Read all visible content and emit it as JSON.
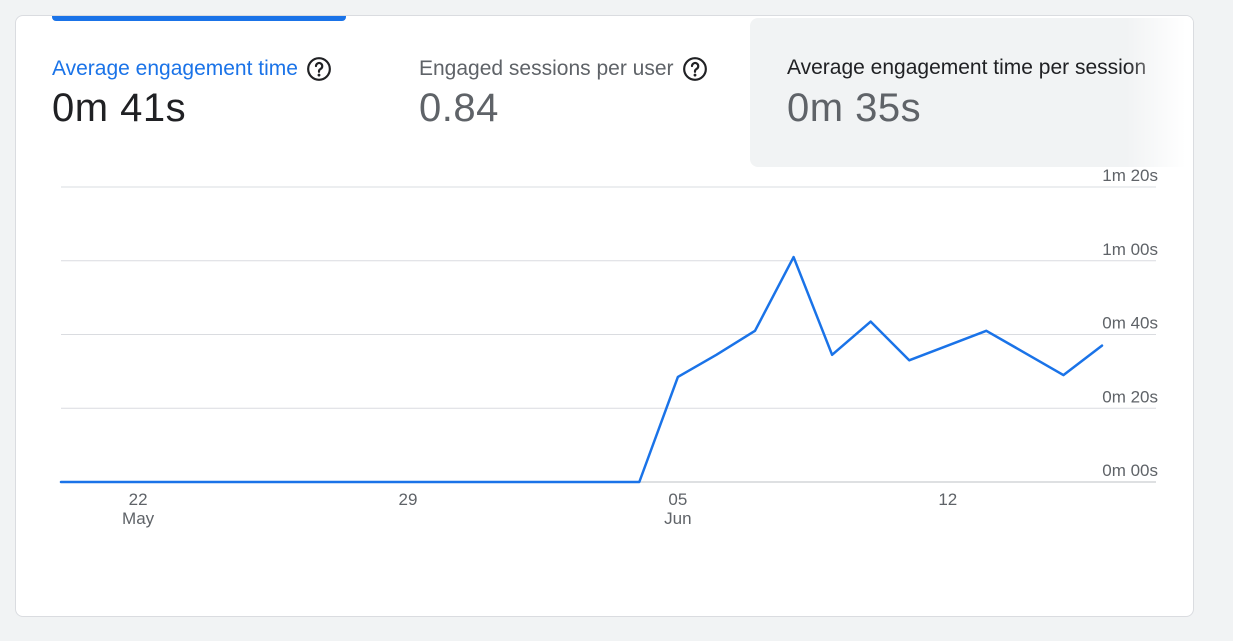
{
  "metrics": [
    {
      "label": "Average engagement time",
      "value": "0m 41s"
    },
    {
      "label": "Engaged sessions per user",
      "value": "0.84"
    },
    {
      "label": "Average engagement time per session",
      "value": "0m 35s"
    }
  ],
  "icons": {
    "help": "help-circle-icon"
  },
  "colors": {
    "accent": "#1a73e8",
    "grid": "#dadce0",
    "text": "#5f6368"
  },
  "chart_data": {
    "type": "line",
    "x_ticks": [
      {
        "date": "2024-05-22",
        "line1": "22",
        "line2": "May"
      },
      {
        "date": "2024-05-29",
        "line1": "29",
        "line2": ""
      },
      {
        "date": "2024-06-05",
        "line1": "05",
        "line2": "Jun"
      },
      {
        "date": "2024-06-12",
        "line1": "12",
        "line2": ""
      }
    ],
    "y_ticks": [
      {
        "value": 0,
        "label": "0m 00s"
      },
      {
        "value": 20,
        "label": "0m 20s"
      },
      {
        "value": 40,
        "label": "0m 40s"
      },
      {
        "value": 60,
        "label": "1m 00s"
      },
      {
        "value": 80,
        "label": "1m 20s"
      }
    ],
    "ylim": [
      0,
      80
    ],
    "xlim": [
      "2024-05-20",
      "2024-06-16"
    ],
    "grid": true,
    "series": [
      {
        "color": "#1a73e8",
        "x": [
          "2024-05-20",
          "2024-05-21",
          "2024-05-22",
          "2024-05-23",
          "2024-05-24",
          "2024-05-25",
          "2024-05-26",
          "2024-05-27",
          "2024-05-28",
          "2024-05-29",
          "2024-05-30",
          "2024-05-31",
          "2024-06-01",
          "2024-06-02",
          "2024-06-03",
          "2024-06-04",
          "2024-06-05",
          "2024-06-06",
          "2024-06-07",
          "2024-06-08",
          "2024-06-09",
          "2024-06-10",
          "2024-06-11",
          "2024-06-12",
          "2024-06-13",
          "2024-06-14",
          "2024-06-15",
          "2024-06-16"
        ],
        "y": [
          0,
          0,
          0,
          0,
          0,
          0,
          0,
          0,
          0,
          0,
          0,
          0,
          0,
          0,
          0,
          0,
          28.5,
          34.5,
          41,
          61,
          34.5,
          43.5,
          33,
          37,
          41,
          35,
          29,
          37
        ]
      }
    ]
  }
}
